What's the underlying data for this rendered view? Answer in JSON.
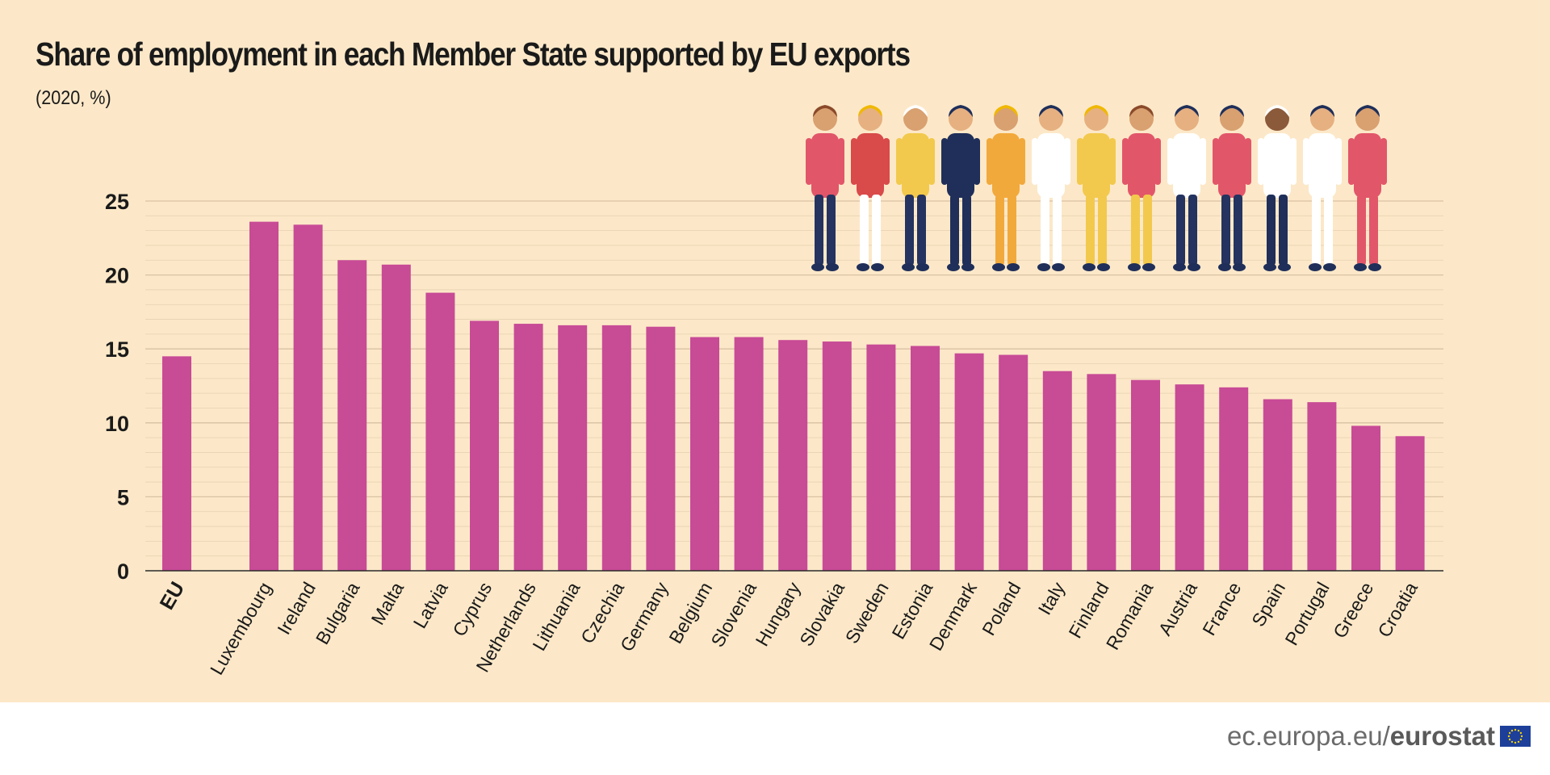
{
  "title": "Share of employment in each Member State supported by EU exports",
  "subtitle": "(2020, %)",
  "footer": {
    "domain": "ec.europa.eu/",
    "brand": "eurostat"
  },
  "colors": {
    "bar": "#c84b96",
    "background": "#fce8c8",
    "grid": "#d9c2a3",
    "text": "#1a1a1a"
  },
  "illustration": "group of workers in various occupations",
  "chart_data": {
    "type": "bar",
    "title": "Share of employment in each Member State supported by EU exports",
    "subtitle": "(2020, %)",
    "ylim": [
      0,
      25
    ],
    "yticks": [
      0,
      5,
      10,
      15,
      20,
      25
    ],
    "grid": true,
    "categories": [
      "EU",
      "Luxembourg",
      "Ireland",
      "Bulgaria",
      "Malta",
      "Latvia",
      "Cyprus",
      "Netherlands",
      "Lithuania",
      "Czechia",
      "Germany",
      "Belgium",
      "Slovenia",
      "Hungary",
      "Slovakia",
      "Sweden",
      "Estonia",
      "Denmark",
      "Poland",
      "Italy",
      "Finland",
      "Romania",
      "Austria",
      "France",
      "Spain",
      "Portugal",
      "Greece",
      "Croatia"
    ],
    "values": [
      14.5,
      23.6,
      23.4,
      21.0,
      20.7,
      18.8,
      16.9,
      16.7,
      16.6,
      16.6,
      16.5,
      15.8,
      15.8,
      15.6,
      15.5,
      15.3,
      15.2,
      14.7,
      14.6,
      13.5,
      13.3,
      12.9,
      12.6,
      12.4,
      11.6,
      11.4,
      9.8,
      9.1
    ],
    "highlight": [
      "EU"
    ]
  }
}
